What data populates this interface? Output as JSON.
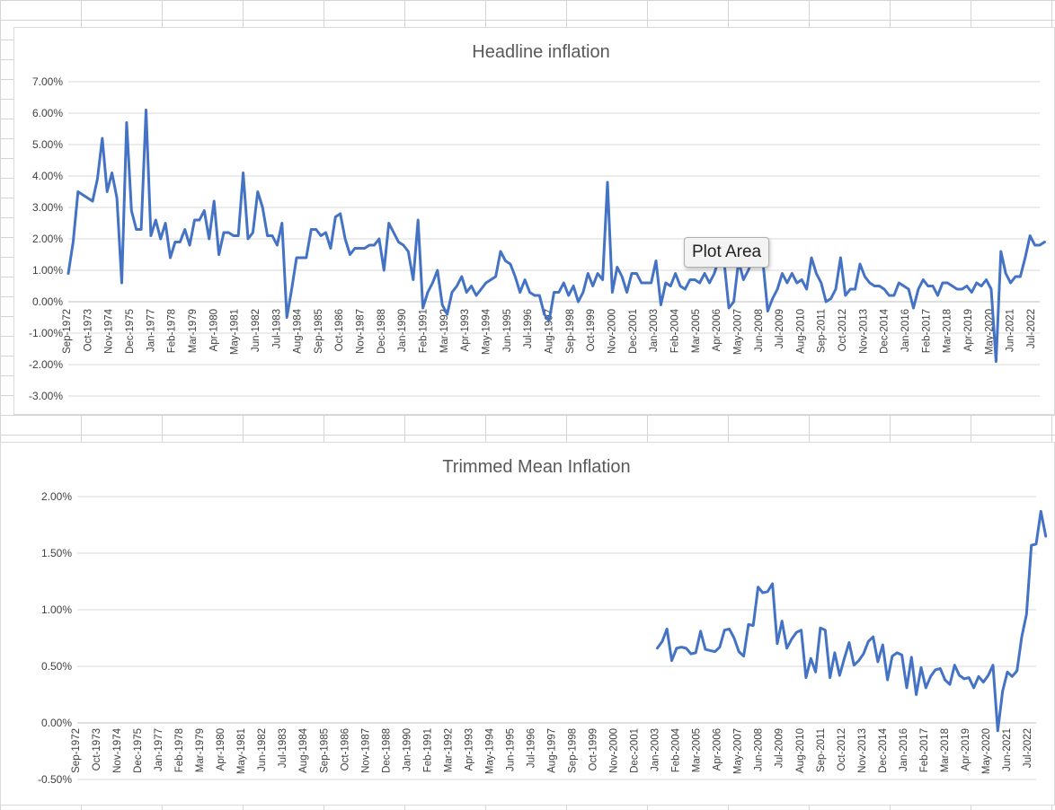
{
  "tooltip": "Plot Area",
  "colors": {
    "line": "#4472C4",
    "grid": "#d9d9d9",
    "text": "#404040"
  },
  "chart_data": [
    {
      "type": "line",
      "title": "Headline inflation",
      "ylim": [
        -0.03,
        0.07
      ],
      "yticks": [
        -0.03,
        -0.02,
        -0.01,
        0,
        0.01,
        0.02,
        0.03,
        0.04,
        0.05,
        0.06,
        0.07
      ],
      "ytick_labels": [
        "-3.00%",
        "-2.00%",
        "-1.00%",
        "0.00%",
        "1.00%",
        "2.00%",
        "3.00%",
        "4.00%",
        "5.00%",
        "6.00%",
        "7.00%"
      ],
      "x_labels": [
        "Sep-1972",
        "Oct-1973",
        "Nov-1974",
        "Dec-1975",
        "Jan-1977",
        "Feb-1978",
        "Mar-1979",
        "Apr-1980",
        "May-1981",
        "Jun-1982",
        "Jul-1983",
        "Aug-1984",
        "Sep-1985",
        "Oct-1986",
        "Nov-1987",
        "Dec-1988",
        "Jan-1990",
        "Feb-1991",
        "Mar-1992",
        "Apr-1993",
        "May-1994",
        "Jun-1995",
        "Jul-1996",
        "Aug-1997",
        "Sep-1998",
        "Oct-1999",
        "Nov-2000",
        "Dec-2001",
        "Jan-2003",
        "Feb-2004",
        "Mar-2005",
        "Apr-2006",
        "May-2007",
        "Jun-2008",
        "Jul-2009",
        "Aug-2010",
        "Sep-2011",
        "Oct-2012",
        "Nov-2013",
        "Dec-2014",
        "Jan-2016",
        "Feb-2017",
        "Mar-2018",
        "Apr-2019",
        "May-2020",
        "Jun-2021",
        "Jul-2022"
      ],
      "series": [
        {
          "name": "Headline inflation",
          "values": [
            0.009,
            0.019,
            0.035,
            0.034,
            0.033,
            0.032,
            0.039,
            0.052,
            0.035,
            0.041,
            0.033,
            0.006,
            0.057,
            0.029,
            0.023,
            0.023,
            0.061,
            0.021,
            0.026,
            0.02,
            0.025,
            0.014,
            0.019,
            0.019,
            0.023,
            0.018,
            0.026,
            0.026,
            0.029,
            0.02,
            0.032,
            0.015,
            0.022,
            0.022,
            0.021,
            0.021,
            0.041,
            0.02,
            0.022,
            0.035,
            0.03,
            0.021,
            0.021,
            0.018,
            0.025,
            -0.005,
            0.004,
            0.014,
            0.014,
            0.014,
            0.023,
            0.023,
            0.021,
            0.022,
            0.017,
            0.027,
            0.028,
            0.02,
            0.015,
            0.017,
            0.017,
            0.017,
            0.018,
            0.018,
            0.02,
            0.01,
            0.025,
            0.022,
            0.019,
            0.018,
            0.016,
            0.007,
            0.026,
            -0.002,
            0.003,
            0.006,
            0.01,
            -0.001,
            -0.004,
            0.003,
            0.005,
            0.008,
            0.003,
            0.005,
            0.002,
            0.004,
            0.006,
            0.007,
            0.008,
            0.016,
            0.013,
            0.012,
            0.008,
            0.003,
            0.007,
            0.003,
            0.002,
            0.002,
            -0.004,
            -0.006,
            0.003,
            0.003,
            0.006,
            0.002,
            0.005,
            0,
            0.003,
            0.009,
            0.005,
            0.009,
            0.007,
            0.038,
            0.003,
            0.011,
            0.008,
            0.003,
            0.009,
            0.009,
            0.006,
            0.006,
            0.006,
            0.013,
            -0.001,
            0.006,
            0.005,
            0.009,
            0.005,
            0.004,
            0.007,
            0.007,
            0.006,
            0.009,
            0.006,
            0.009,
            0.014,
            0.013,
            -0.002,
            0,
            0.013,
            0.007,
            0.01,
            0.014,
            0.016,
            0.013,
            -0.003,
            0.001,
            0.004,
            0.009,
            0.006,
            0.009,
            0.006,
            0.007,
            0.004,
            0.014,
            0.009,
            0.006,
            0,
            0.001,
            0.004,
            0.014,
            0.002,
            0.004,
            0.004,
            0.012,
            0.008,
            0.006,
            0.005,
            0.005,
            0.004,
            0.002,
            0.002,
            0.006,
            0.005,
            0.004,
            -0.002,
            0.004,
            0.007,
            0.005,
            0.005,
            0.002,
            0.006,
            0.006,
            0.005,
            0.004,
            0.004,
            0.005,
            0.003,
            0.006,
            0.005,
            0.007,
            0.004,
            -0.019,
            0.016,
            0.009,
            0.006,
            0.008,
            0.008,
            0.014,
            0.021,
            0.018,
            0.018,
            0.019
          ]
        }
      ]
    },
    {
      "type": "line",
      "title": "Trimmed Mean Inflation",
      "ylim": [
        -0.005,
        0.02
      ],
      "yticks": [
        -0.005,
        0,
        0.005,
        0.01,
        0.015,
        0.02
      ],
      "ytick_labels": [
        "-0.50%",
        "0.00%",
        "0.50%",
        "1.00%",
        "1.50%",
        "2.00%"
      ],
      "x_labels": [
        "Sep-1972",
        "Oct-1973",
        "Nov-1974",
        "Dec-1975",
        "Jan-1977",
        "Feb-1978",
        "Mar-1979",
        "Apr-1980",
        "May-1981",
        "Jun-1982",
        "Jul-1983",
        "Aug-1984",
        "Sep-1985",
        "Oct-1986",
        "Nov-1987",
        "Dec-1988",
        "Jan-1990",
        "Feb-1991",
        "Mar-1992",
        "Apr-1993",
        "May-1994",
        "Jun-1995",
        "Jul-1996",
        "Aug-1997",
        "Sep-1998",
        "Oct-1999",
        "Nov-2000",
        "Dec-2001",
        "Jan-2003",
        "Feb-2004",
        "Mar-2005",
        "Apr-2006",
        "May-2007",
        "Jun-2008",
        "Jul-2009",
        "Aug-2010",
        "Sep-2011",
        "Oct-2012",
        "Nov-2013",
        "Dec-2014",
        "Jan-2016",
        "Feb-2017",
        "Mar-2018",
        "Apr-2019",
        "May-2020",
        "Jun-2021",
        "Jul-2022"
      ],
      "series": [
        {
          "name": "Trimmed Mean Inflation",
          "start_index": 121,
          "values": [
            0.0066,
            0.0072,
            0.0083,
            0.0055,
            0.0066,
            0.0067,
            0.0066,
            0.0061,
            0.0062,
            0.0081,
            0.0065,
            0.0064,
            0.0063,
            0.0067,
            0.0082,
            0.0083,
            0.0075,
            0.0063,
            0.0059,
            0.0087,
            0.0086,
            0.012,
            0.0115,
            0.0116,
            0.0123,
            0.007,
            0.009,
            0.0066,
            0.0074,
            0.008,
            0.0082,
            0.004,
            0.0057,
            0.0045,
            0.0084,
            0.0082,
            0.004,
            0.0062,
            0.0042,
            0.0057,
            0.0071,
            0.0051,
            0.0055,
            0.0061,
            0.0072,
            0.0076,
            0.0054,
            0.0069,
            0.0038,
            0.0059,
            0.0062,
            0.006,
            0.0031,
            0.0058,
            0.0025,
            0.0049,
            0.0031,
            0.0041,
            0.0047,
            0.0048,
            0.0038,
            0.0034,
            0.0051,
            0.0042,
            0.0039,
            0.004,
            0.0031,
            0.0041,
            0.0036,
            0.0042,
            0.0051,
            -0.0007,
            0.0028,
            0.0045,
            0.0041,
            0.0046,
            0.0076,
            0.0096,
            0.0157,
            0.0158,
            0.0187,
            0.0165
          ]
        }
      ]
    }
  ]
}
